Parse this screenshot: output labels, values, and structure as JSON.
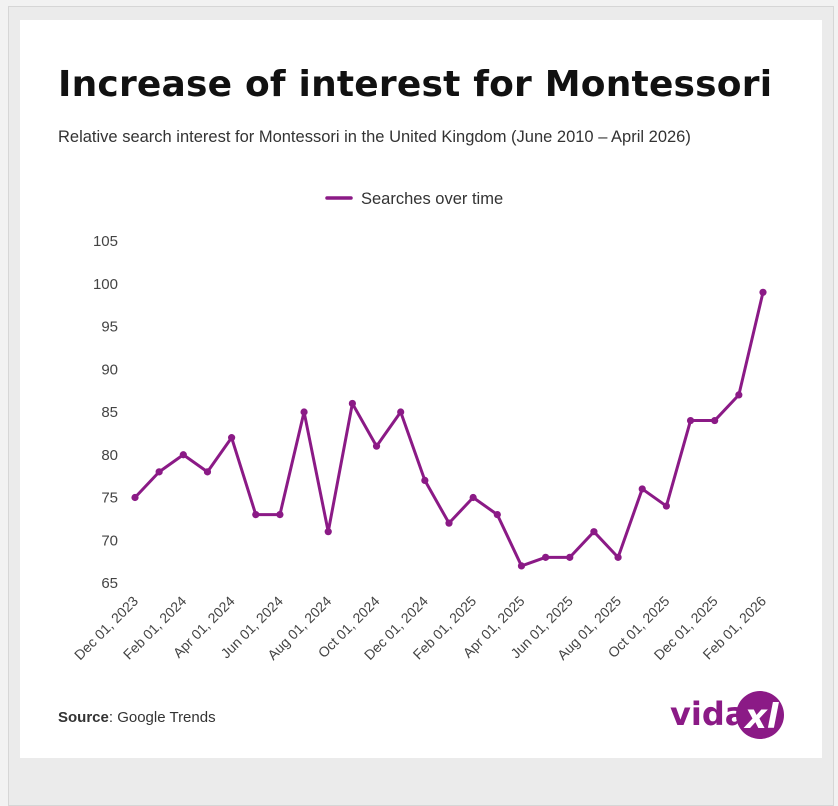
{
  "page": {
    "title": "Increase of interest for Montessori",
    "subtitle": "Relative search interest for Montessori in the United Kingdom (June 2010 – April 2026)",
    "source_label": "Source",
    "source_value": ": Google Trends",
    "logo_text": "vidaxl"
  },
  "colors": {
    "series": "#8b1a86",
    "logo": "#8b1a86",
    "text": "#111111",
    "axis_text": "#444444"
  },
  "chart_data": {
    "type": "line",
    "title": "Increase of interest for Montessori",
    "subtitle": "Relative search interest for Montessori in the United Kingdom (June 2010 – April 2026)",
    "xlabel": "",
    "ylabel": "",
    "legend_position": "top-center",
    "grid": false,
    "ylim": [
      65,
      105
    ],
    "yticks": [
      65,
      70,
      75,
      80,
      85,
      90,
      95,
      100,
      105
    ],
    "x_tick_labels": [
      "Dec 01, 2023",
      "Feb 01, 2024",
      "Apr 01, 2024",
      "Jun 01, 2024",
      "Aug 01, 2024",
      "Oct 01, 2024",
      "Dec 01, 2024",
      "Feb 01, 2025",
      "Apr 01, 2025",
      "Jun 01, 2025",
      "Aug 01, 2025",
      "Oct 01, 2025",
      "Dec 01, 2025",
      "Feb 01, 2026"
    ],
    "x": [
      "2023-12",
      "2024-01",
      "2024-02",
      "2024-03",
      "2024-04",
      "2024-05",
      "2024-06",
      "2024-07",
      "2024-08",
      "2024-09",
      "2024-10",
      "2024-11",
      "2024-12",
      "2025-01",
      "2025-02",
      "2025-03",
      "2025-04",
      "2025-05",
      "2025-06",
      "2025-07",
      "2025-08",
      "2025-09",
      "2025-10",
      "2025-11",
      "2025-12",
      "2026-01",
      "2026-02"
    ],
    "series": [
      {
        "name": "Searches over time",
        "values": [
          75,
          78,
          80,
          78,
          82,
          73,
          73,
          85,
          71,
          86,
          81,
          85,
          77,
          72,
          75,
          73,
          67,
          68,
          68,
          71,
          68,
          76,
          74,
          84,
          84,
          87,
          99
        ]
      }
    ]
  }
}
